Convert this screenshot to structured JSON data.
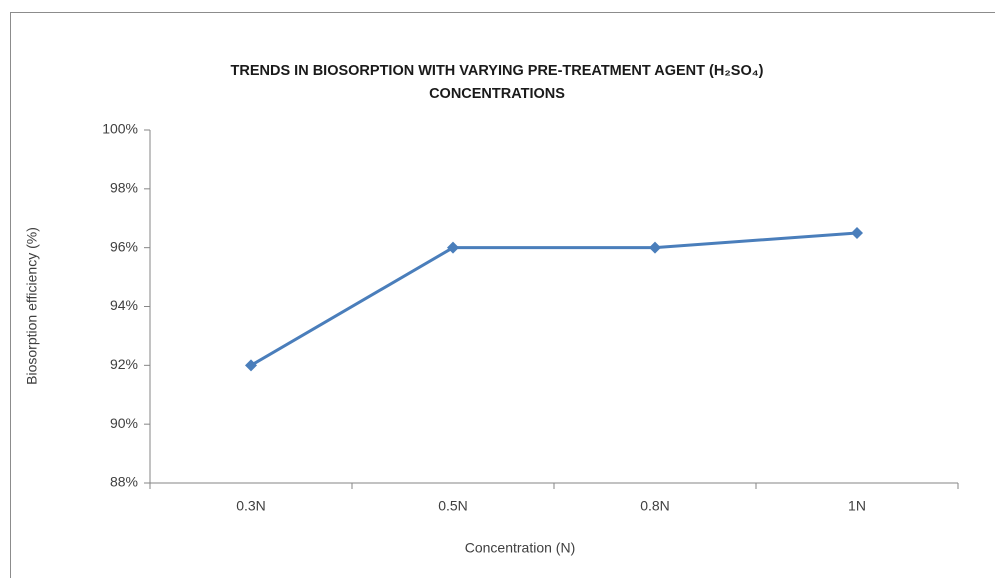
{
  "chart_data": {
    "type": "line",
    "title": "TRENDS IN BIOSORPTION WITH VARYING PRE-TREATMENT AGENT (H₂SO₄) CONCENTRATIONS",
    "x_label": "Concentration (N)",
    "y_label": "Biosorption efficiency (%)",
    "categories": [
      "0.3N",
      "0.5N",
      "0.8N",
      "1N"
    ],
    "series": [
      {
        "name": "Biosorption efficiency",
        "color": "#4a7ebb",
        "values": [
          92,
          96,
          96,
          96.5
        ]
      }
    ],
    "ylim": [
      88,
      100
    ],
    "yticks": [
      {
        "value": 88,
        "label": "88%"
      },
      {
        "value": 90,
        "label": "90%"
      },
      {
        "value": 92,
        "label": "92%"
      },
      {
        "value": 94,
        "label": "94%"
      },
      {
        "value": 96,
        "label": "96%"
      },
      {
        "value": 98,
        "label": "98%"
      },
      {
        "value": 100,
        "label": "100%"
      }
    ],
    "grid": false,
    "legend": false
  }
}
